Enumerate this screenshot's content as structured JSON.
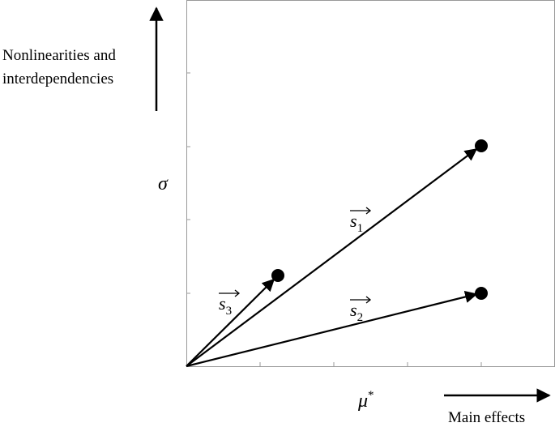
{
  "y_axis": {
    "symbol": "σ",
    "caption": [
      "Nonlinearities and",
      "interdependencies"
    ]
  },
  "x_axis": {
    "symbol": "μ",
    "superscript": "*",
    "caption": "Main effects"
  },
  "vectors": [
    {
      "letter": "s",
      "subscript": "1"
    },
    {
      "letter": "s",
      "subscript": "2"
    },
    {
      "letter": "s",
      "subscript": "3"
    }
  ]
}
